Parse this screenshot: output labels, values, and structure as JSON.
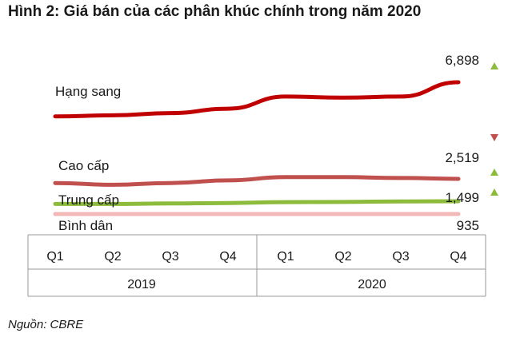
{
  "title": "Hình 2: Giá bán của các phân khúc chính trong năm 2020",
  "source": "Nguồn: CBRE",
  "chart_data": {
    "type": "line",
    "title": "Hình 2: Giá bán của các phân khúc chính trong năm 2020",
    "categories": [
      "Q1",
      "Q2",
      "Q3",
      "Q4",
      "Q1",
      "Q2",
      "Q3",
      "Q4"
    ],
    "groups": [
      {
        "label": "2019",
        "span": [
          0,
          3
        ]
      },
      {
        "label": "2020",
        "span": [
          4,
          7
        ]
      }
    ],
    "series": [
      {
        "name": "Hạng sang",
        "color": "#c00000",
        "values": [
          5350,
          5400,
          5500,
          5700,
          6250,
          6200,
          6250,
          6898
        ],
        "end_label": "6,898",
        "trend": "up",
        "trend_color": "#8dbb3c"
      },
      {
        "name": "Cao cấp",
        "color": "#c0504d",
        "values": [
          2330,
          2250,
          2330,
          2450,
          2600,
          2600,
          2560,
          2519
        ],
        "end_label": "2,519",
        "trend": "down",
        "trend_color": "#c0504d"
      },
      {
        "name": "Trung cấp",
        "color": "#8dbb3c",
        "values": [
          1380,
          1380,
          1400,
          1420,
          1460,
          1470,
          1490,
          1499
        ],
        "end_label": "1,499",
        "trend": "up",
        "trend_color": "#8dbb3c"
      },
      {
        "name": "Bình dân",
        "color": "#f2b8b8",
        "values": [
          935,
          935,
          935,
          935,
          935,
          935,
          935,
          935
        ],
        "end_label": "935",
        "trend": "up",
        "trend_color": "#8dbb3c"
      }
    ]
  }
}
